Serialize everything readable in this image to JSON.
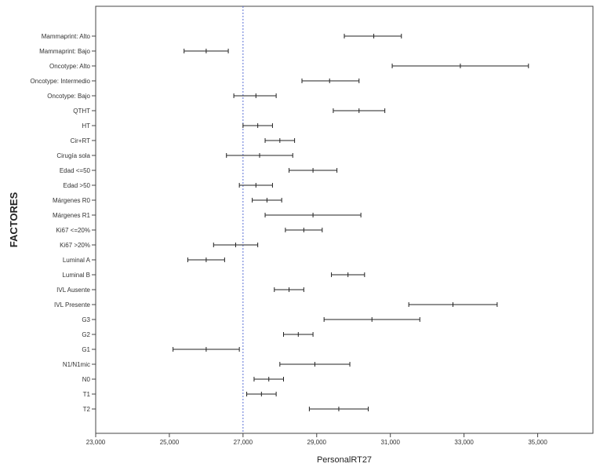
{
  "chart_data": {
    "type": "errorbar",
    "xlabel": "PersonalRT27",
    "ylabel": "FACTORES",
    "xlim": [
      23000,
      36500
    ],
    "xticks": [
      23000,
      25000,
      27000,
      29000,
      31000,
      33000,
      35000
    ],
    "xtick_labels": [
      "23,000",
      "25,000",
      "27,000",
      "29,000",
      "31,000",
      "33,000",
      "35,000"
    ],
    "reference_line": 27000,
    "reference_color": "#5a6fd6",
    "grid": false,
    "categories": [
      {
        "label": "Mammaprint: Alto",
        "low": 29750,
        "mean": 30550,
        "high": 31300
      },
      {
        "label": "Mammaprint: Bajo",
        "low": 25400,
        "mean": 26000,
        "high": 26600
      },
      {
        "label": "Oncotype: Alto",
        "low": 31050,
        "mean": 32900,
        "high": 34750
      },
      {
        "label": "Oncotype: Intermedio",
        "low": 28600,
        "mean": 29350,
        "high": 30150
      },
      {
        "label": "Oncotype: Bajo",
        "low": 26750,
        "mean": 27350,
        "high": 27900
      },
      {
        "label": "QTHT",
        "low": 29450,
        "mean": 30150,
        "high": 30850
      },
      {
        "label": "HT",
        "low": 27000,
        "mean": 27400,
        "high": 27800
      },
      {
        "label": "Cir+RT",
        "low": 27600,
        "mean": 28000,
        "high": 28400
      },
      {
        "label": "Cirugía sola",
        "low": 26550,
        "mean": 27450,
        "high": 28350
      },
      {
        "label": "Edad <=50",
        "low": 28250,
        "mean": 28900,
        "high": 29550
      },
      {
        "label": "Edad >50",
        "low": 26900,
        "mean": 27350,
        "high": 27800
      },
      {
        "label": "Márgenes R0",
        "low": 27250,
        "mean": 27650,
        "high": 28050
      },
      {
        "label": "Márgenes R1",
        "low": 27600,
        "mean": 28900,
        "high": 30200
      },
      {
        "label": "Ki67 <=20%",
        "low": 28150,
        "mean": 28650,
        "high": 29150
      },
      {
        "label": "Ki67 >20%",
        "low": 26200,
        "mean": 26800,
        "high": 27400
      },
      {
        "label": "Luminal A",
        "low": 25500,
        "mean": 26000,
        "high": 26500
      },
      {
        "label": "Luminal B",
        "low": 29400,
        "mean": 29850,
        "high": 30300
      },
      {
        "label": "IVL Ausente",
        "low": 27850,
        "mean": 28250,
        "high": 28650
      },
      {
        "label": "IVL Presente",
        "low": 31500,
        "mean": 32700,
        "high": 33900
      },
      {
        "label": "G3",
        "low": 29200,
        "mean": 30500,
        "high": 31800
      },
      {
        "label": "G2",
        "low": 28100,
        "mean": 28500,
        "high": 28900
      },
      {
        "label": "G1",
        "low": 25100,
        "mean": 26000,
        "high": 26900
      },
      {
        "label": "N1/N1mic",
        "low": 28000,
        "mean": 28950,
        "high": 29900
      },
      {
        "label": "N0",
        "low": 27300,
        "mean": 27700,
        "high": 28100
      },
      {
        "label": "T1",
        "low": 27100,
        "mean": 27500,
        "high": 27900
      },
      {
        "label": "T2",
        "low": 28800,
        "mean": 29600,
        "high": 30400
      }
    ]
  }
}
